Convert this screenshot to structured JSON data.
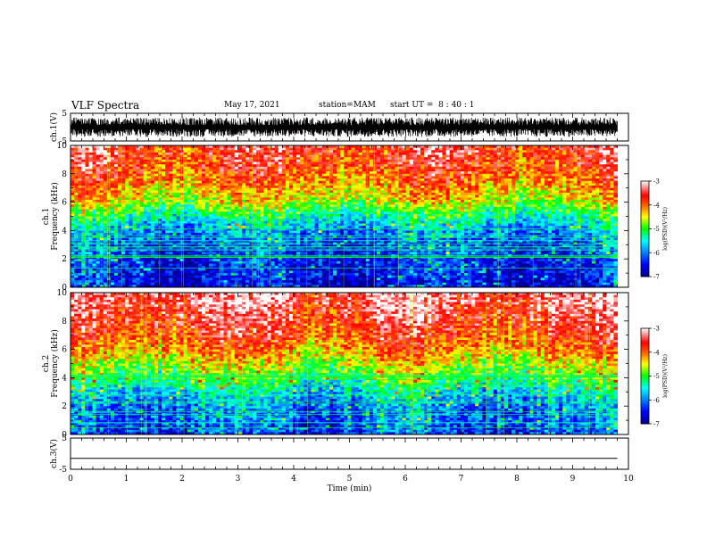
{
  "header": {
    "title": "VLF Spectra",
    "date": "May 17, 2021",
    "station": "station=MAM",
    "start": "start UT =  8 : 40 : 1"
  },
  "chart_data": [
    {
      "type": "line",
      "name": "ch1-waveform",
      "ylabel": "ch.1(V)",
      "ylim": [
        -5,
        5
      ],
      "yticks": [
        "5",
        "-5"
      ],
      "xlim": [
        0,
        10
      ],
      "amplitude_range": [
        -3.5,
        3.5
      ]
    },
    {
      "type": "heatmap",
      "name": "ch1-spectrogram",
      "ylabel_line1": "ch.1",
      "ylabel_line2": "Frequency (kHz)",
      "ylim": [
        0,
        10
      ],
      "yticks": [
        "0",
        "2",
        "4",
        "6",
        "8",
        "10"
      ],
      "xlim": [
        0,
        9.8
      ],
      "colorbar": {
        "range": [
          -7,
          -3
        ],
        "ticks": [
          "-3",
          "-4",
          "-5",
          "-6",
          "-7"
        ],
        "label": "log(PSD)(V²/Hz)"
      },
      "profile": [
        {
          "f": 0.0,
          "v": -6.6
        },
        {
          "f": 1.0,
          "v": -6.5
        },
        {
          "f": 2.0,
          "v": -6.4
        },
        {
          "f": 3.0,
          "v": -6.2
        },
        {
          "f": 4.0,
          "v": -5.9
        },
        {
          "f": 5.0,
          "v": -5.3
        },
        {
          "f": 6.0,
          "v": -4.6
        },
        {
          "f": 7.0,
          "v": -4.2
        },
        {
          "f": 8.0,
          "v": -3.9
        },
        {
          "f": 9.0,
          "v": -3.7
        },
        {
          "f": 10.0,
          "v": -3.6
        }
      ]
    },
    {
      "type": "heatmap",
      "name": "ch2-spectrogram",
      "ylabel_line1": "ch.2",
      "ylabel_line2": "Frequency (kHz)",
      "ylim": [
        0,
        10
      ],
      "yticks": [
        "0",
        "2",
        "4",
        "6",
        "8",
        "10"
      ],
      "xlim": [
        0,
        9.8
      ],
      "colorbar": {
        "range": [
          -7,
          -3
        ],
        "ticks": [
          "-3",
          "-4",
          "-5",
          "-6",
          "-7"
        ],
        "label": "log(PSD)(V²/Hz)"
      },
      "profile": [
        {
          "f": 0.0,
          "v": -6.3
        },
        {
          "f": 1.0,
          "v": -6.1
        },
        {
          "f": 2.0,
          "v": -6.0
        },
        {
          "f": 3.0,
          "v": -5.6
        },
        {
          "f": 4.0,
          "v": -5.0
        },
        {
          "f": 5.0,
          "v": -4.6
        },
        {
          "f": 6.0,
          "v": -4.1
        },
        {
          "f": 7.0,
          "v": -3.8
        },
        {
          "f": 8.0,
          "v": -3.6
        },
        {
          "f": 9.0,
          "v": -3.4
        },
        {
          "f": 10.0,
          "v": -3.3
        }
      ]
    },
    {
      "type": "line",
      "name": "ch3-waveform",
      "ylabel": "ch.3(V)",
      "ylim": [
        -5,
        5
      ],
      "yticks": [
        "5",
        "-5"
      ],
      "xlim": [
        0,
        10
      ],
      "x": [
        0,
        9.8
      ],
      "y": [
        -1.5,
        -1.5
      ]
    }
  ],
  "xaxis": {
    "label": "Time (min)",
    "ticks": [
      "0",
      "1",
      "2",
      "3",
      "4",
      "5",
      "6",
      "7",
      "8",
      "9",
      "10"
    ],
    "range": [
      0,
      10
    ]
  },
  "colors": {
    "colormap": [
      "#00008f",
      "#0000ff",
      "#00ffff",
      "#ffff00",
      "#ff0000",
      "#ffffff"
    ]
  }
}
